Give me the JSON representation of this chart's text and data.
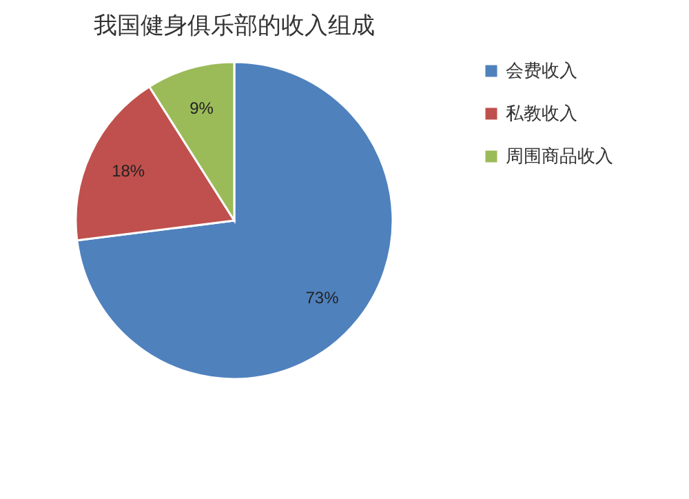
{
  "chart_data": {
    "type": "pie",
    "title": "我国健身俱乐部的收入组成",
    "categories": [
      "会费收入",
      "私教收入",
      "周围商品收入"
    ],
    "values": [
      73,
      18,
      9
    ],
    "colors": [
      "#4f81bd",
      "#c0504d",
      "#9bbb59"
    ],
    "value_labels": [
      "73%",
      "18%",
      "9%"
    ],
    "legend": "right"
  }
}
